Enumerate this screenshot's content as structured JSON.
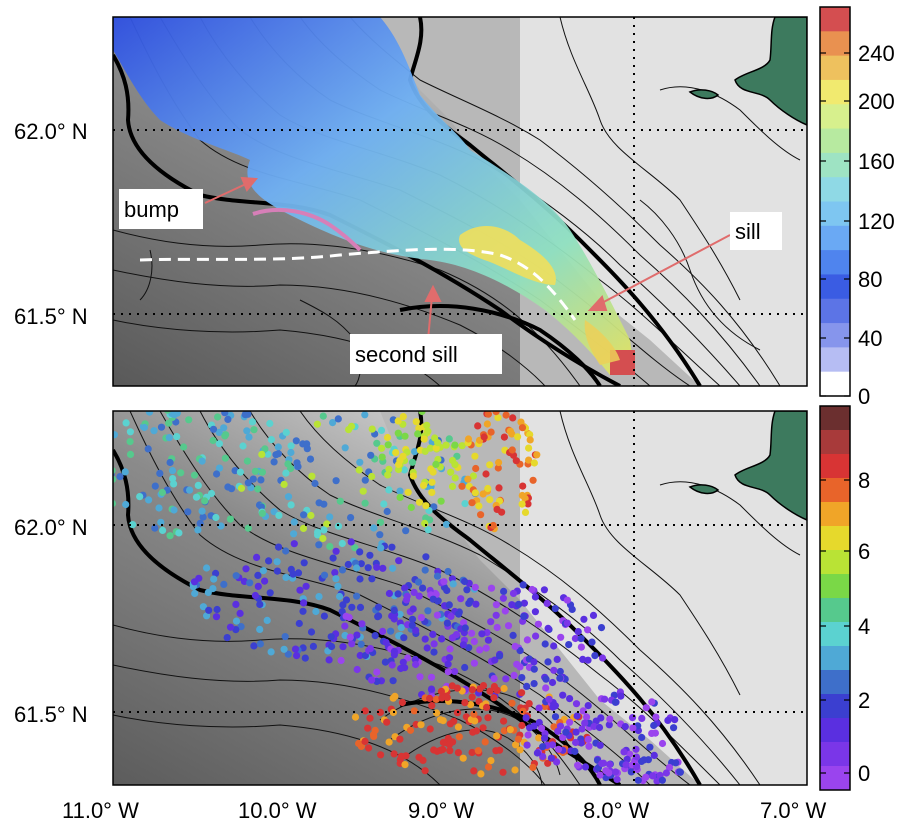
{
  "top_panel": {
    "lat_labels": [
      "62.0° N",
      "61.5° N"
    ],
    "annotations": [
      "bump",
      "sill",
      "second sill"
    ],
    "colorbar": {
      "ticks": [
        "240",
        "200",
        "160",
        "120",
        "80",
        "40",
        "0"
      ],
      "colors": [
        "#d44e50",
        "#e99150",
        "#eec15e",
        "#f1ea6f",
        "#d7f08d",
        "#b7eaa0",
        "#9ee3c3",
        "#8fd9e5",
        "#7ec6f1",
        "#6aa9f4",
        "#4f84ee",
        "#3a5ce3",
        "#5c74e6",
        "#8695ec",
        "#b6bdf3",
        "#ffffff"
      ]
    }
  },
  "bottom_panel": {
    "lat_labels": [
      "62.0° N",
      "61.5° N"
    ],
    "lon_labels": [
      "11.0° W",
      "10.0° W",
      "9.0° W",
      "8.0° W",
      "7.0° W"
    ],
    "colorbar": {
      "ticks": [
        "8",
        "6",
        "4",
        "2",
        "0"
      ],
      "colors": [
        "#6b2f2f",
        "#a83a3a",
        "#d83434",
        "#e8642a",
        "#f0a528",
        "#e6d92c",
        "#b9e335",
        "#7ad847",
        "#56c98d",
        "#5bd2d0",
        "#4fa9d6",
        "#3e6fca",
        "#3b3fd0",
        "#5a2fe0",
        "#7a36e8",
        "#9a44ee"
      ]
    }
  }
}
